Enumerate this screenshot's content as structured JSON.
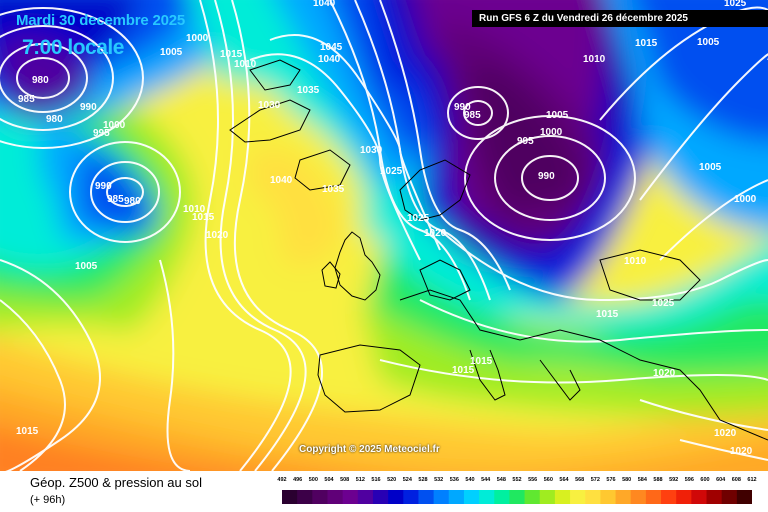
{
  "header": {
    "date": "Mardi 30 decembre 2025",
    "local_time": "7:00 locale",
    "run_info": "Run GFS 6 Z du Vendredi 26 décembre 2025"
  },
  "map": {
    "copyright": "Copyright © 2025 Meteociel.fr",
    "pressure_labels": [
      "1040",
      "1025",
      "1005",
      "1000",
      "1015",
      "1010",
      "980",
      "985",
      "980",
      "990",
      "995",
      "1000",
      "1045",
      "1040",
      "1035",
      "1030",
      "1040",
      "1035",
      "1030",
      "1025",
      "1025",
      "1020",
      "1010",
      "1015",
      "1020",
      "990",
      "985",
      "1005",
      "1000",
      "995",
      "990",
      "1010",
      "1005",
      "1015",
      "1005",
      "1000",
      "1010",
      "1025",
      "1015",
      "1015",
      "1015",
      "1020",
      "1020",
      "1020",
      "1015",
      "990",
      "985",
      "980",
      "1005"
    ]
  },
  "footer": {
    "variable": "Géop. Z500 & pression au sol",
    "lead_time": "(+ 96h)"
  },
  "colorbar": {
    "ticks": [
      "492",
      "496",
      "500",
      "504",
      "508",
      "512",
      "516",
      "520",
      "524",
      "528",
      "532",
      "536",
      "540",
      "544",
      "548",
      "552",
      "556",
      "560",
      "564",
      "568",
      "572",
      "576",
      "580",
      "584",
      "588",
      "592",
      "596",
      "600",
      "604",
      "608",
      "612"
    ],
    "colors": [
      "#2a0030",
      "#3c0048",
      "#500060",
      "#600078",
      "#6c0090",
      "#5000a0",
      "#2800b4",
      "#0000c8",
      "#0020e0",
      "#0050f0",
      "#0080ff",
      "#00a8ff",
      "#00d0ff",
      "#00ecd8",
      "#00f0a0",
      "#20e860",
      "#60e830",
      "#a0ec20",
      "#d8f020",
      "#f8f040",
      "#ffe040",
      "#ffc830",
      "#ffa828",
      "#ff8820",
      "#ff6818",
      "#ff4010",
      "#f02008",
      "#d00808",
      "#a00000",
      "#700000",
      "#400000"
    ]
  }
}
